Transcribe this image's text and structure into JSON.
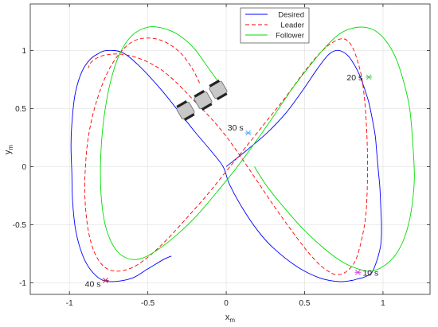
{
  "chart_data": {
    "type": "line",
    "xlabel": "x",
    "xlabel_sub": "m",
    "ylabel": "y",
    "ylabel_sub": "m",
    "xlim": [
      -1.25,
      1.3
    ],
    "ylim": [
      -1.1,
      1.4
    ],
    "xticks": [
      -1,
      -0.5,
      0,
      0.5,
      1
    ],
    "xtick_labels": [
      "-1",
      "-0.5",
      "0",
      "0.5",
      "1"
    ],
    "yticks": [
      -1,
      -0.5,
      0,
      0.5,
      1
    ],
    "ytick_labels": [
      "-1",
      "-0.5",
      "0",
      "0.5",
      "1"
    ],
    "grid": true,
    "legend_position": "top-center",
    "series": [
      {
        "name": "Desired",
        "color": "#0000ff",
        "dash": "solid",
        "x": [
          0,
          0.13,
          0.26,
          0.38,
          0.49,
          0.58,
          0.65,
          0.7,
          0.74,
          0.78,
          0.82,
          0.85,
          0.88,
          0.91,
          0.93,
          0.95,
          0.96,
          0.97,
          0.98,
          0.985,
          0.99,
          0.99,
          0.985,
          0.97,
          0.95,
          0.93,
          0.9,
          0.86,
          0.83,
          0.8,
          0.72,
          0.6,
          0.45,
          0.3,
          0.2,
          0.1,
          0.02,
          -0.02,
          -0.1,
          -0.2,
          -0.3,
          -0.42,
          -0.55,
          -0.66,
          -0.76,
          -0.82,
          -0.87,
          -0.92,
          -0.96,
          -0.98,
          -0.99,
          -0.985,
          -0.98,
          -0.96,
          -0.92,
          -0.87,
          -0.8,
          -0.72,
          -0.6,
          -0.5,
          -0.4,
          -0.35
        ],
        "y": [
          0,
          0.14,
          0.29,
          0.46,
          0.66,
          0.84,
          0.96,
          1.0,
          0.99,
          0.95,
          0.87,
          0.79,
          0.68,
          0.55,
          0.42,
          0.27,
          0.12,
          -0.03,
          -0.18,
          -0.33,
          -0.48,
          -0.59,
          -0.68,
          -0.77,
          -0.85,
          -0.91,
          -0.94,
          -0.96,
          -0.97,
          -0.98,
          -0.99,
          -0.96,
          -0.86,
          -0.7,
          -0.55,
          -0.35,
          -0.15,
          0.0,
          0.14,
          0.3,
          0.47,
          0.67,
          0.86,
          0.98,
          1.0,
          0.97,
          0.92,
          0.82,
          0.65,
          0.45,
          0.2,
          -0.05,
          -0.3,
          -0.55,
          -0.75,
          -0.88,
          -0.97,
          -0.99,
          -0.96,
          -0.88,
          -0.8,
          -0.77
        ]
      },
      {
        "name": "Leader",
        "color": "#ff0000",
        "dash": "dashed",
        "x": [
          -0.17,
          -0.22,
          -0.3,
          -0.42,
          -0.55,
          -0.65,
          -0.75,
          -0.83,
          -0.88,
          -0.9,
          -0.9,
          -0.88,
          -0.84,
          -0.78,
          -0.7,
          -0.6,
          -0.5,
          -0.38,
          -0.25,
          -0.12,
          0.0,
          0.12,
          0.25,
          0.38,
          0.5,
          0.6,
          0.68,
          0.75,
          0.8,
          0.84,
          0.87,
          0.89,
          0.9,
          0.9,
          0.89,
          0.86,
          0.82,
          0.76,
          0.7,
          0.65,
          0.6,
          0.55,
          0.5,
          0.4,
          0.3,
          0.2,
          0.1,
          0.0,
          -0.1,
          -0.2,
          -0.3,
          -0.4,
          -0.5,
          -0.6,
          -0.7,
          -0.8,
          -0.86,
          -0.88
        ],
        "y": [
          0.72,
          0.85,
          0.99,
          1.09,
          1.1,
          1.02,
          0.83,
          0.55,
          0.25,
          -0.05,
          -0.3,
          -0.55,
          -0.74,
          -0.86,
          -0.9,
          -0.87,
          -0.78,
          -0.63,
          -0.44,
          -0.24,
          -0.04,
          0.16,
          0.38,
          0.6,
          0.82,
          0.98,
          1.07,
          1.1,
          1.04,
          0.9,
          0.72,
          0.45,
          0.15,
          -0.15,
          -0.42,
          -0.65,
          -0.82,
          -0.91,
          -0.93,
          -0.9,
          -0.85,
          -0.78,
          -0.7,
          -0.52,
          -0.33,
          -0.13,
          0.07,
          0.26,
          0.42,
          0.56,
          0.7,
          0.82,
          0.9,
          0.95,
          0.97,
          0.95,
          0.9,
          0.85
        ]
      },
      {
        "name": "Follower",
        "color": "#00dd00",
        "dash": "solid",
        "x": [
          -0.05,
          -0.12,
          -0.2,
          -0.3,
          -0.4,
          -0.5,
          -0.6,
          -0.68,
          -0.74,
          -0.78,
          -0.8,
          -0.8,
          -0.78,
          -0.74,
          -0.68,
          -0.6,
          -0.52,
          -0.42,
          -0.3,
          -0.18,
          -0.06,
          0.06,
          0.18,
          0.3,
          0.42,
          0.54,
          0.64,
          0.72,
          0.8,
          0.88,
          0.95,
          1.02,
          1.08,
          1.13,
          1.17,
          1.19,
          1.2,
          1.18,
          1.14,
          1.08,
          1.0,
          0.92,
          0.84,
          0.74,
          0.62,
          0.5,
          0.38,
          0.26,
          0.18
        ],
        "y": [
          0.73,
          0.86,
          1.01,
          1.13,
          1.19,
          1.2,
          1.13,
          0.97,
          0.72,
          0.42,
          0.1,
          -0.2,
          -0.45,
          -0.63,
          -0.75,
          -0.8,
          -0.78,
          -0.7,
          -0.57,
          -0.41,
          -0.22,
          -0.02,
          0.2,
          0.43,
          0.67,
          0.88,
          1.04,
          1.14,
          1.19,
          1.2,
          1.17,
          1.08,
          0.94,
          0.74,
          0.5,
          0.2,
          -0.1,
          -0.38,
          -0.6,
          -0.76,
          -0.86,
          -0.9,
          -0.88,
          -0.82,
          -0.7,
          -0.55,
          -0.37,
          -0.17,
          0.0
        ]
      }
    ],
    "annotations": [
      {
        "label": "10 s",
        "x": 0.84,
        "y": -0.91,
        "color": "#dd44dd"
      },
      {
        "label": "20 s",
        "x": 0.91,
        "y": 0.77,
        "color": "#55cc55"
      },
      {
        "label": "30 s",
        "x": 0.14,
        "y": 0.29,
        "color": "#55aaff"
      },
      {
        "label": "40 s",
        "x": -0.77,
        "y": -0.98,
        "color": "#aa2266"
      }
    ]
  }
}
